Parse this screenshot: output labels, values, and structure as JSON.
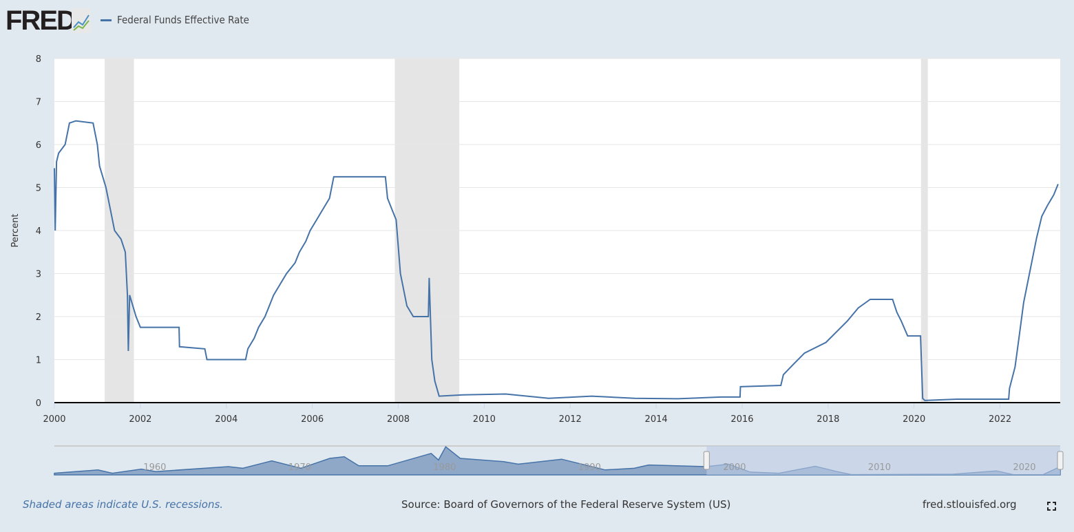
{
  "header": {
    "logo": "FRED",
    "legend_label": "Federal Funds Effective Rate"
  },
  "footer": {
    "note": "Shaded areas indicate U.S. recessions.",
    "source": "Source: Board of Governors of the Federal Reserve System (US)",
    "site": "fred.stlouisfed.org"
  },
  "colors": {
    "line": "#4572a7",
    "recession": "#e5e5e5",
    "navigator_fill": "#8fa8c8",
    "navigator_selection": "#bccbe4"
  },
  "chart_data": {
    "type": "line",
    "title": "Federal Funds Effective Rate",
    "xlabel": "",
    "ylabel": "Percent",
    "xlim": [
      2000,
      2023.4
    ],
    "ylim": [
      0,
      8
    ],
    "yticks": [
      "0",
      "1",
      "2",
      "3",
      "4",
      "5",
      "6",
      "7",
      "8"
    ],
    "xticks": [
      "2000",
      "2002",
      "2004",
      "2006",
      "2008",
      "2010",
      "2012",
      "2014",
      "2016",
      "2018",
      "2020",
      "2022"
    ],
    "grid": true,
    "legend": "top-left",
    "recessions": [
      [
        2001.17,
        2001.85
      ],
      [
        2007.92,
        2009.42
      ],
      [
        2020.16,
        2020.32
      ]
    ],
    "series": [
      {
        "name": "Federal Funds Effective Rate",
        "x": [
          2000,
          2000.02,
          2000.05,
          2000.1,
          2000.25,
          2000.35,
          2000.5,
          2000.9,
          2001.0,
          2001.05,
          2001.2,
          2001.3,
          2001.4,
          2001.55,
          2001.65,
          2001.7,
          2001.72,
          2001.75,
          2001.9,
          2002.0,
          2002.9,
          2002.91,
          2003.5,
          2003.55,
          2004.45,
          2004.5,
          2004.65,
          2004.75,
          2004.9,
          2005.0,
          2005.1,
          2005.25,
          2005.4,
          2005.6,
          2005.7,
          2005.85,
          2005.95,
          2006.1,
          2006.25,
          2006.4,
          2006.5,
          2007.7,
          2007.75,
          2007.85,
          2007.95,
          2008.05,
          2008.2,
          2008.35,
          2008.7,
          2008.72,
          2008.78,
          2008.85,
          2008.95,
          2009.5,
          2010.5,
          2011.5,
          2012.5,
          2013.5,
          2014.5,
          2015.5,
          2015.95,
          2015.96,
          2016.9,
          2016.96,
          2017.2,
          2017.45,
          2017.95,
          2018.2,
          2018.45,
          2018.7,
          2018.98,
          2019.5,
          2019.6,
          2019.7,
          2019.85,
          2020.15,
          2020.2,
          2020.25,
          2021.0,
          2021.5,
          2022.2,
          2022.22,
          2022.35,
          2022.45,
          2022.55,
          2022.7,
          2022.85,
          2022.97,
          2023.1,
          2023.25,
          2023.35
        ],
        "y": [
          5.45,
          4.0,
          5.6,
          5.8,
          6.0,
          6.5,
          6.55,
          6.5,
          6.0,
          5.5,
          5.0,
          4.5,
          4.0,
          3.8,
          3.5,
          2.5,
          1.2,
          2.5,
          2.0,
          1.75,
          1.75,
          1.3,
          1.25,
          1.0,
          1.0,
          1.25,
          1.5,
          1.75,
          2.0,
          2.25,
          2.5,
          2.75,
          3.0,
          3.25,
          3.5,
          3.75,
          4.0,
          4.25,
          4.5,
          4.75,
          5.25,
          5.25,
          4.75,
          4.5,
          4.25,
          3.0,
          2.25,
          2.0,
          2.0,
          2.9,
          1.0,
          0.5,
          0.15,
          0.18,
          0.2,
          0.1,
          0.15,
          0.1,
          0.09,
          0.13,
          0.13,
          0.37,
          0.4,
          0.65,
          0.9,
          1.15,
          1.4,
          1.65,
          1.9,
          2.2,
          2.4,
          2.4,
          2.1,
          1.9,
          1.55,
          1.55,
          0.1,
          0.05,
          0.08,
          0.08,
          0.08,
          0.33,
          0.83,
          1.58,
          2.33,
          3.08,
          3.83,
          4.33,
          4.58,
          4.83,
          5.08
        ]
      }
    ],
    "navigator": {
      "labels": [
        "1960",
        "1970",
        "1980",
        "1990",
        "2000",
        "2010",
        "2020"
      ],
      "range": [
        1954,
        2023.4
      ],
      "selected": [
        1999,
        2023.4
      ]
    }
  }
}
